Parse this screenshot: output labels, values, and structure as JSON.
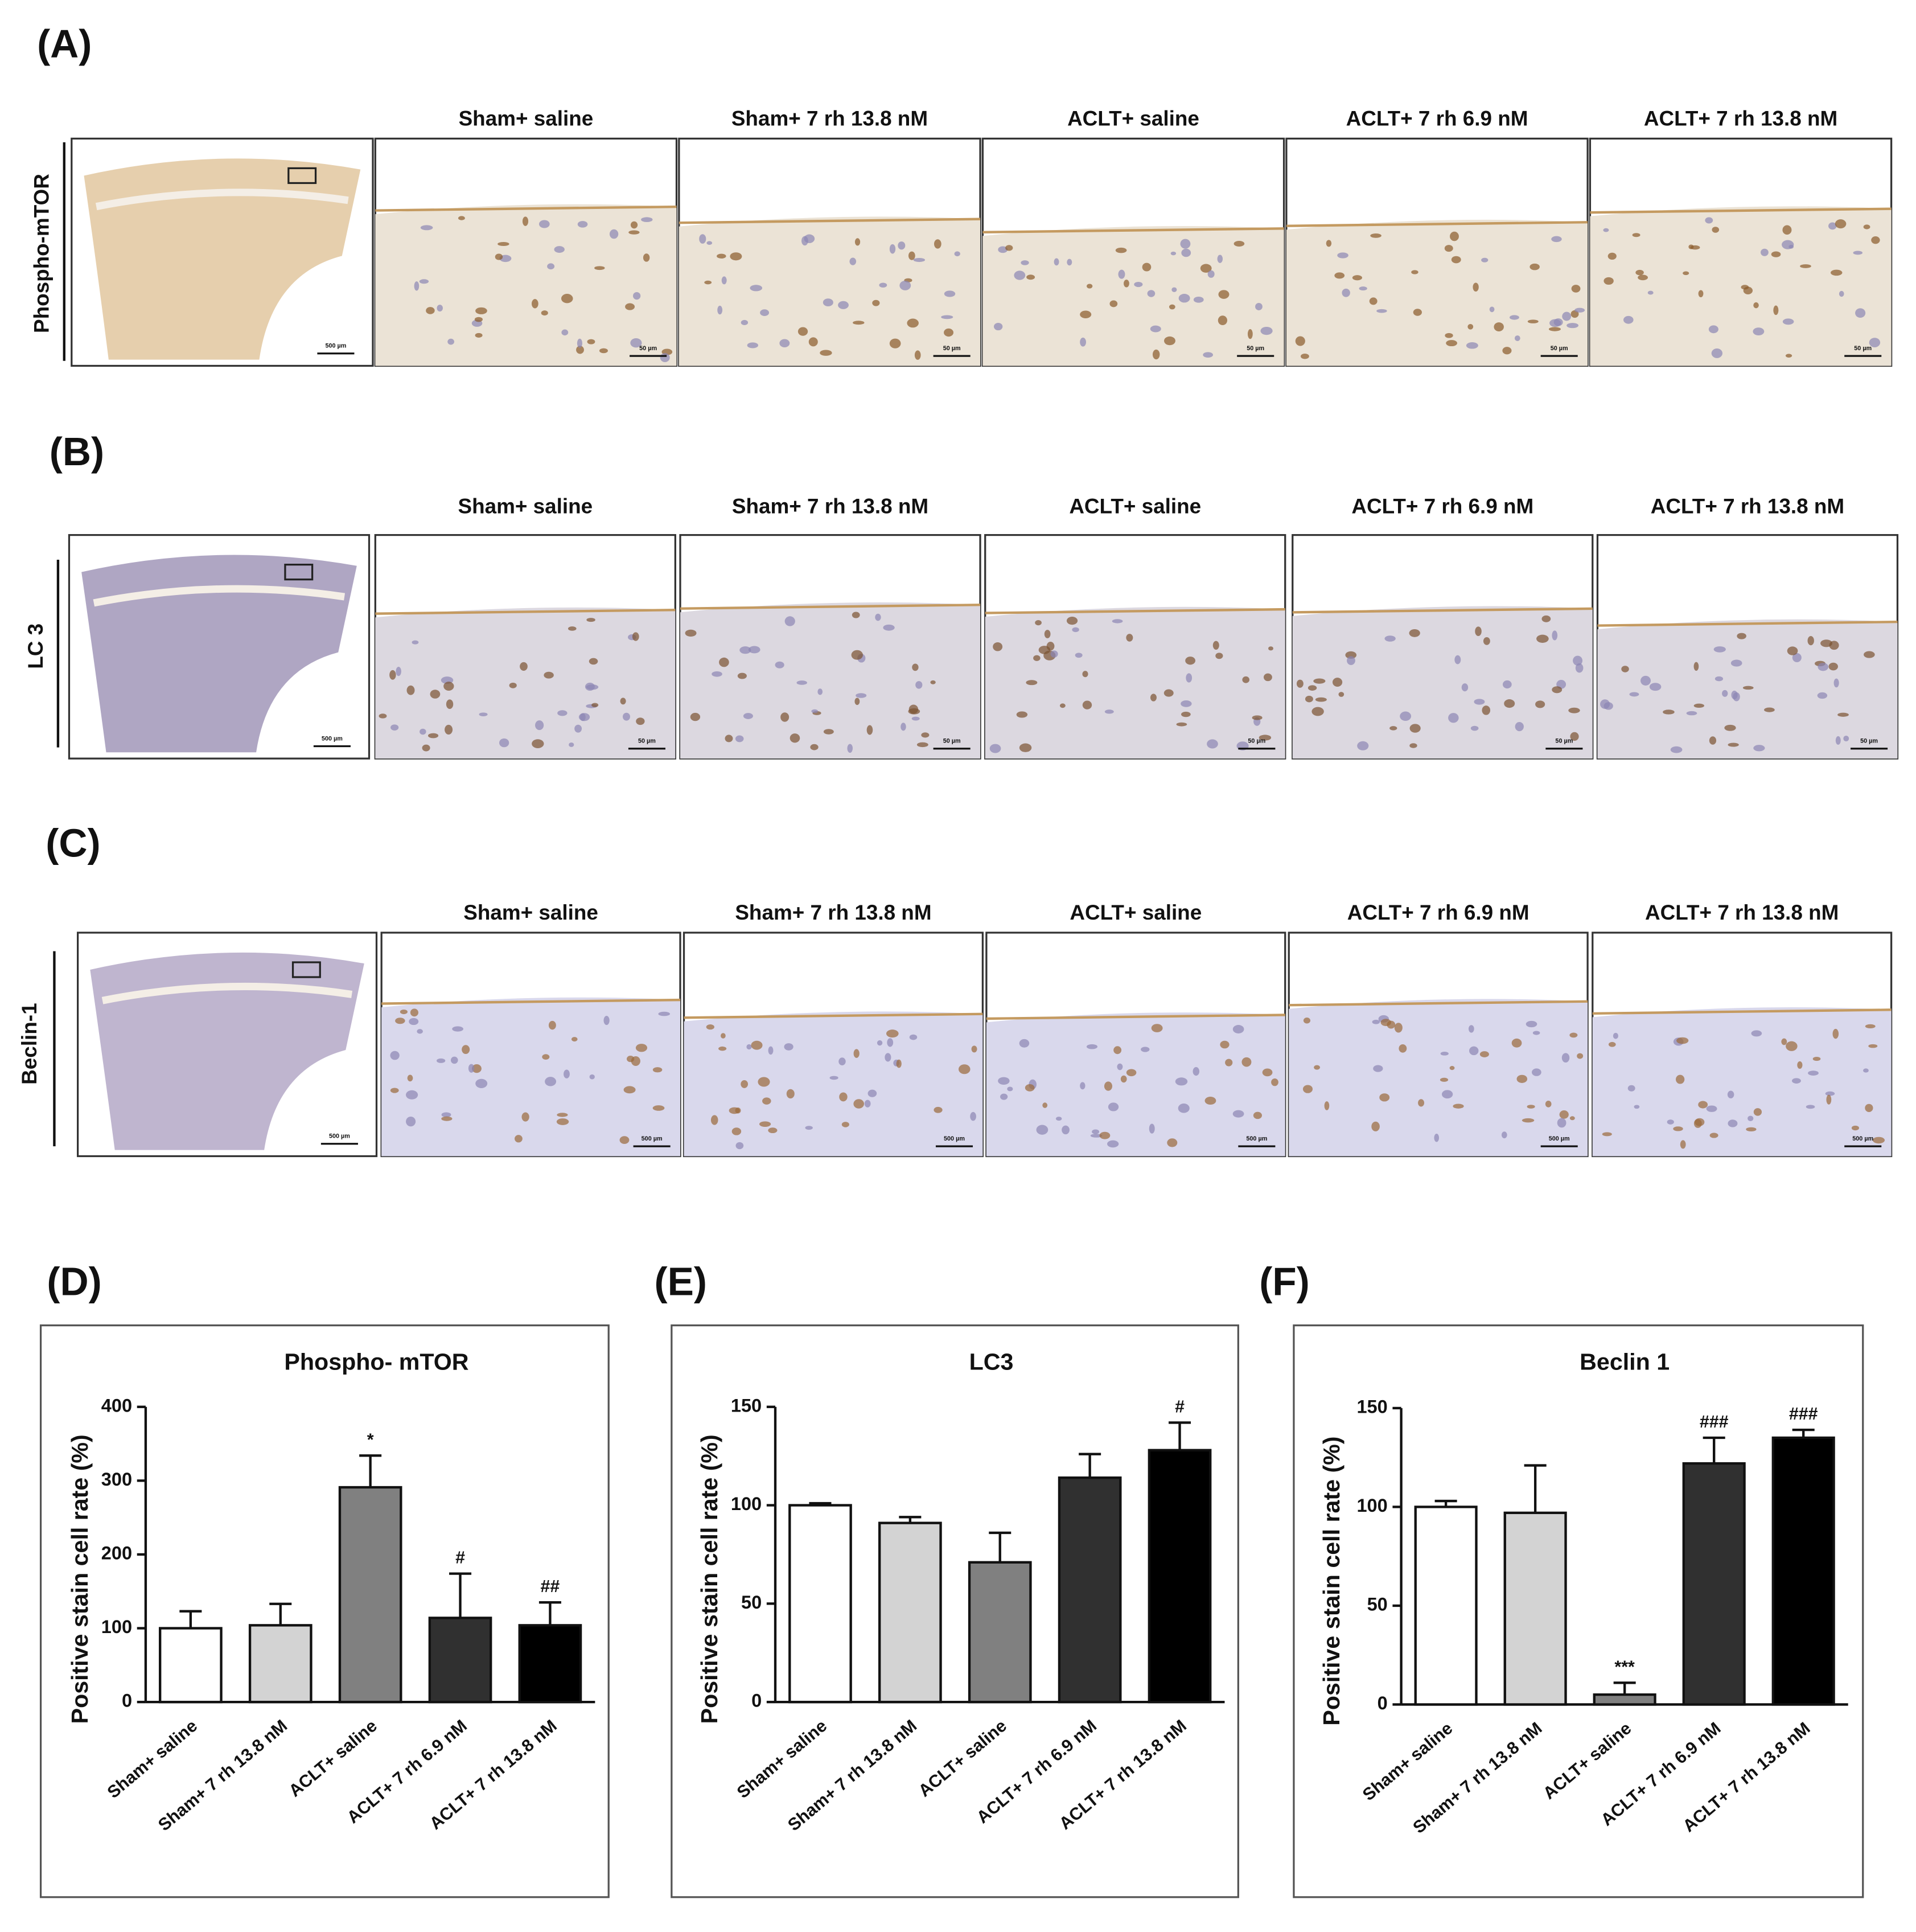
{
  "figure_panels": [
    {
      "letter": "(A)",
      "row_label": "Phospho-mTOR",
      "columns": [
        "Sham+ saline",
        "Sham+ 7 rh 13.8 nM",
        "ACLT+ saline",
        "ACLT+ 7 rh 6.9 nM",
        "ACLT+ 7 rh 13.8 nM"
      ],
      "overview_scale": "500 µm",
      "detail_scale": "50 µm"
    },
    {
      "letter": "(B)",
      "row_label": "LC 3",
      "columns": [
        "Sham+ saline",
        "Sham+ 7 rh 13.8 nM",
        "ACLT+ saline",
        "ACLT+ 7 rh 6.9 nM",
        "ACLT+ 7 rh 13.8 nM"
      ],
      "overview_scale": "500 µm",
      "detail_scale": "50 µm"
    },
    {
      "letter": "(C)",
      "row_label": "Beclin-1",
      "columns": [
        "Sham+ saline",
        "Sham+ 7 rh 13.8 nM",
        "ACLT+ saline",
        "ACLT+ 7 rh 6.9 nM",
        "ACLT+ 7 rh 13.8 nM"
      ],
      "overview_scale": "500 µm",
      "detail_scale": "500 µm"
    }
  ],
  "chart_data": [
    {
      "type": "bar",
      "panel_label": "(D)",
      "title": "Phospho- mTOR",
      "y_label": "Positive stain cell rate (%)",
      "categories": [
        "Sham+ saline",
        "Sham+ 7 rh 13.8 nM",
        "ACLT+ saline",
        "ACLT+ 7 rh 6.9 nM",
        "ACLT+ 7 rh 13.8 nM"
      ],
      "values": [
        100,
        104,
        291,
        114,
        104
      ],
      "errors": [
        23,
        29,
        43,
        60,
        31
      ],
      "annotations": [
        null,
        null,
        "*",
        "#",
        "##"
      ],
      "colors": [
        "#ffffff",
        "#d3d3d3",
        "#808080",
        "#303030",
        "#000000"
      ],
      "ylim": [
        0,
        400
      ],
      "yticks": [
        0,
        100,
        200,
        300,
        400
      ]
    },
    {
      "type": "bar",
      "panel_label": "(E)",
      "title": "LC3",
      "y_label": "Positive stain cell rate (%)",
      "categories": [
        "Sham+ saline",
        "Sham+ 7 rh 13.8 nM",
        "ACLT+ saline",
        "ACLT+ 7 rh 6.9 nM",
        "ACLT+ 7 rh 13.8 nM"
      ],
      "values": [
        100,
        91,
        71,
        114,
        128
      ],
      "errors": [
        1,
        3,
        15,
        12,
        14
      ],
      "annotations": [
        null,
        null,
        null,
        null,
        "#"
      ],
      "colors": [
        "#ffffff",
        "#d3d3d3",
        "#808080",
        "#303030",
        "#000000"
      ],
      "ylim": [
        0,
        150
      ],
      "yticks": [
        0,
        50,
        100,
        150
      ]
    },
    {
      "type": "bar",
      "panel_label": "(F)",
      "title": "Beclin 1",
      "y_label": "Positive stain cell rate (%)",
      "categories": [
        "Sham+ saline",
        "Sham+ 7 rh 13.8 nM",
        "ACLT+ saline",
        "ACLT+ 7 rh 6.9 nM",
        "ACLT+ 7 rh 13.8 nM"
      ],
      "values": [
        100,
        97,
        5,
        122,
        135
      ],
      "errors": [
        3,
        24,
        6,
        13,
        4
      ],
      "annotations": [
        null,
        null,
        "***",
        "###",
        "###"
      ],
      "colors": [
        "#ffffff",
        "#d3d3d3",
        "#808080",
        "#303030",
        "#000000"
      ],
      "ylim": [
        0,
        150
      ],
      "yticks": [
        0,
        50,
        100,
        150
      ]
    }
  ]
}
